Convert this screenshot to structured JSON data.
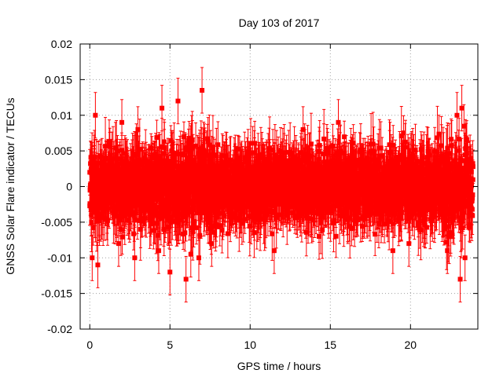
{
  "chart_data": {
    "type": "scatter",
    "title": "Day 103 of 2017",
    "xlabel": "GPS time / hours",
    "ylabel": "GNSS Solar Flare indicator / TECUs",
    "xlim": [
      -0.6,
      24.2
    ],
    "ylim": [
      -0.02,
      0.02
    ],
    "xticks": [
      0,
      5,
      10,
      15,
      20
    ],
    "xtick_labels": [
      "0",
      "5",
      "10",
      "15",
      "20"
    ],
    "yticks": [
      -0.02,
      -0.015,
      -0.01,
      -0.005,
      0,
      0.005,
      0.01,
      0.015,
      0.02
    ],
    "ytick_labels": [
      "-0.02",
      "-0.015",
      "-0.01",
      "-0.005",
      "0",
      "0.005",
      "0.01",
      "0.015",
      "0.02"
    ],
    "grid": true,
    "marker_color": "#ff0000",
    "series": [
      {
        "x_range": [
          0,
          23.9
        ],
        "approx_point_count": 2880,
        "approx_std_dev": 0.0028,
        "approx_errorbar_halfwidth": 0.0032,
        "x": [
          0.0,
          0.15,
          0.35,
          0.5,
          1.8,
          2.0,
          2.8,
          3.0,
          4.3,
          4.5,
          5.0,
          5.5,
          6.0,
          6.3,
          6.8,
          7.0,
          7.6,
          11.5,
          13.3,
          14.3,
          15.5,
          18.9,
          19.9,
          22.3,
          22.9,
          23.1,
          23.2,
          23.4
        ],
        "y": [
          0.002,
          -0.01,
          0.01,
          -0.011,
          -0.008,
          0.009,
          -0.01,
          0.008,
          -0.009,
          0.011,
          -0.012,
          0.012,
          -0.013,
          -0.0095,
          -0.01,
          0.0135,
          -0.008,
          -0.009,
          0.008,
          -0.007,
          0.009,
          -0.009,
          -0.008,
          -0.009,
          0.01,
          -0.013,
          0.011,
          -0.01
        ]
      }
    ]
  }
}
